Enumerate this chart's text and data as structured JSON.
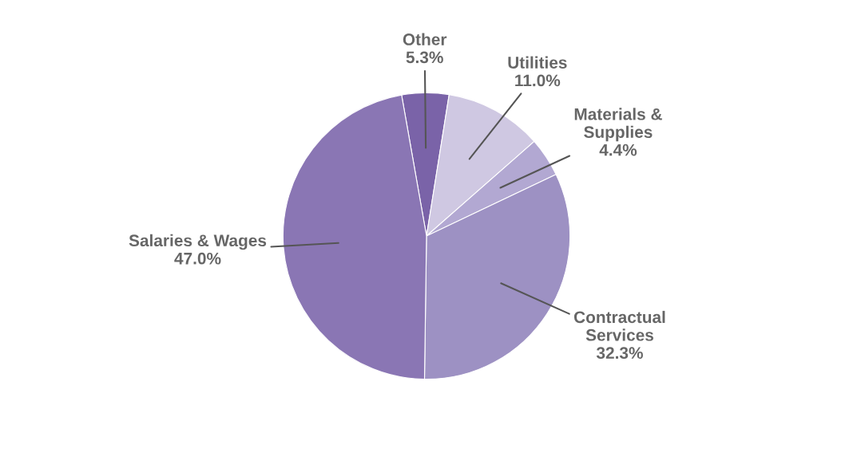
{
  "chart_data": {
    "type": "pie",
    "categories": [
      "Other",
      "Utilities",
      "Materials &\nSupplies",
      "Contractual\nServices",
      "Salaries & Wages"
    ],
    "values": [
      5.3,
      11.0,
      4.4,
      32.3,
      47.0
    ],
    "colors": [
      "#7a63a8",
      "#cfc8e2",
      "#b2a8d2",
      "#9d91c3",
      "#8a76b4"
    ],
    "value_labels": [
      "5.3%",
      "11.0%",
      "4.4%",
      "32.3%",
      "47.0%"
    ],
    "legend": false
  }
}
